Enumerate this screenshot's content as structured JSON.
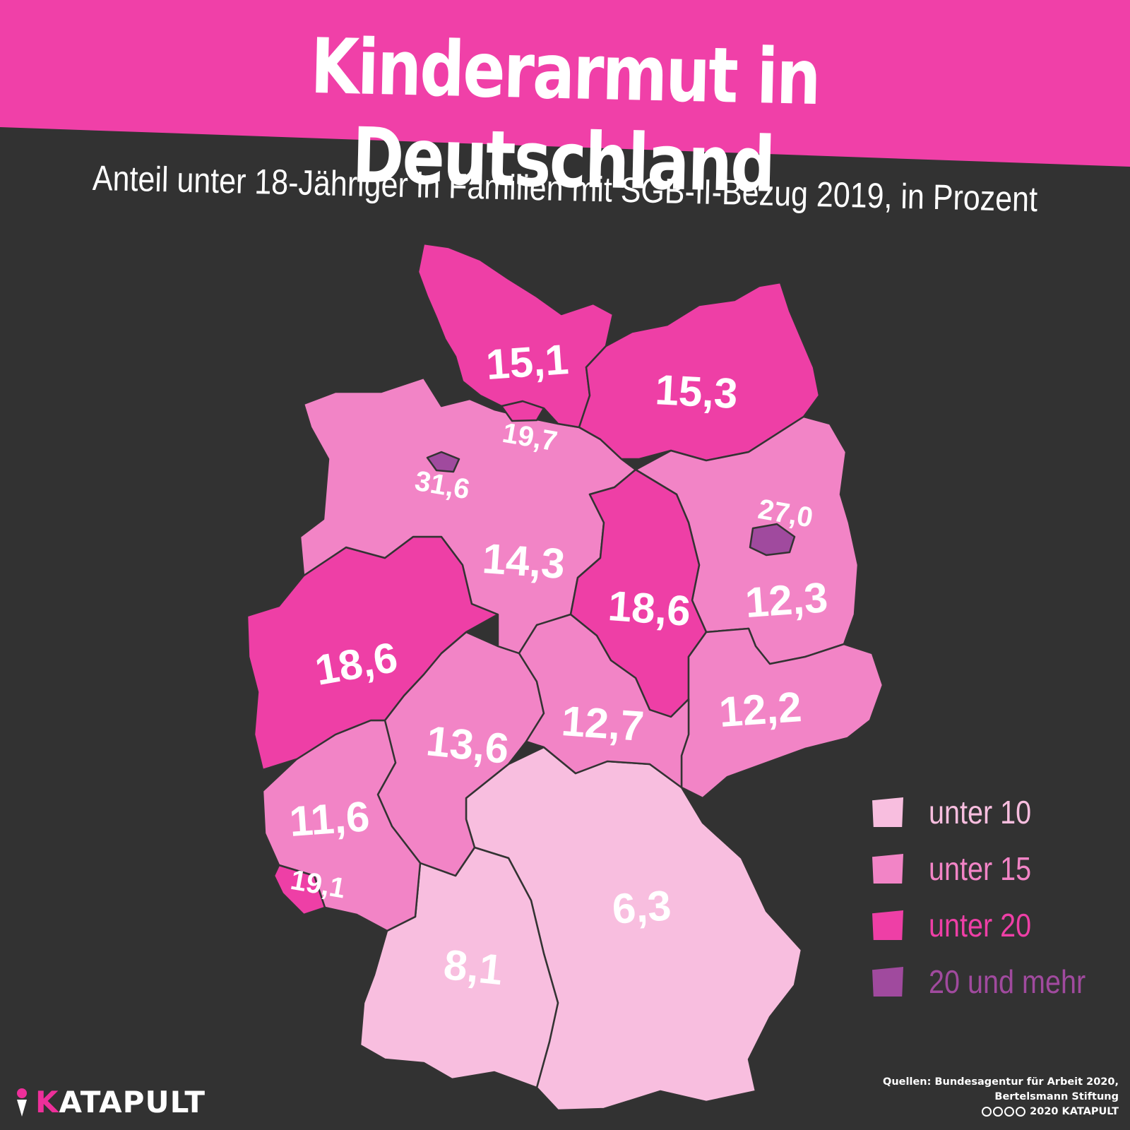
{
  "header": {
    "title": "Kinderarmut in Deutschland",
    "subtitle": "Anteil unter 18-Jähriger in Familien mit SGB-II-Bezug 2019, in Prozent"
  },
  "colors": {
    "background": "#323232",
    "banner": "#f040a8",
    "unter_10": "#f8bedf",
    "unter_15": "#f284c6",
    "unter_20": "#ee3fa6",
    "20_und_mehr": "#a04a9e"
  },
  "regions": [
    {
      "name": "Schleswig-Holstein",
      "value": "15,1",
      "class": "unter_20"
    },
    {
      "name": "Mecklenburg-Vorpommern",
      "value": "15,3",
      "class": "unter_20"
    },
    {
      "name": "Hamburg",
      "value": "19,7",
      "class": "unter_20"
    },
    {
      "name": "Bremen",
      "value": "31,6",
      "class": "20_und_mehr"
    },
    {
      "name": "Niedersachsen",
      "value": "14,3",
      "class": "unter_15"
    },
    {
      "name": "Berlin",
      "value": "27,0",
      "class": "20_und_mehr"
    },
    {
      "name": "Brandenburg",
      "value": "12,3",
      "class": "unter_15"
    },
    {
      "name": "Sachsen-Anhalt",
      "value": "18,6",
      "class": "unter_20"
    },
    {
      "name": "Nordrhein-Westfalen",
      "value": "18,6",
      "class": "unter_20"
    },
    {
      "name": "Sachsen",
      "value": "12,2",
      "class": "unter_15"
    },
    {
      "name": "Thüringen",
      "value": "12,7",
      "class": "unter_15"
    },
    {
      "name": "Hessen",
      "value": "13,6",
      "class": "unter_15"
    },
    {
      "name": "Rheinland-Pfalz",
      "value": "11,6",
      "class": "unter_15"
    },
    {
      "name": "Saarland",
      "value": "19,1",
      "class": "unter_20"
    },
    {
      "name": "Bayern",
      "value": "6,3",
      "class": "unter_10"
    },
    {
      "name": "Baden-Württemberg",
      "value": "8,1",
      "class": "unter_10"
    }
  ],
  "legend": [
    {
      "label": "unter 10",
      "class": "unter_10",
      "color": "#f8bedf"
    },
    {
      "label": "unter 15",
      "class": "unter_15",
      "color": "#f284c6"
    },
    {
      "label": "unter 20",
      "class": "unter_20",
      "color": "#ee3fa6"
    },
    {
      "label": "20 und mehr",
      "class": "20_und_mehr",
      "color": "#a04a9e"
    }
  ],
  "footer": {
    "logo_k": "K",
    "logo_rest": "ATAPULT",
    "sources_line1": "Quellen: Bundesagentur für Arbeit 2020,",
    "sources_line2": "Bertelsmann Stiftung",
    "copyright": "2020 KATAPULT"
  }
}
